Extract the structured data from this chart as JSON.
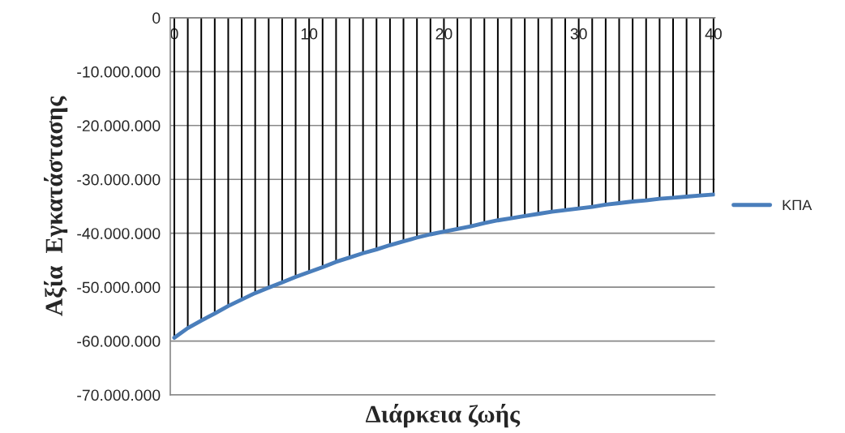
{
  "chart_data": {
    "type": "line",
    "xlabel": "Διάρκεια ζωής",
    "ylabel": "Αξία  Εγκατάστασης",
    "x": [
      0,
      1,
      2,
      3,
      4,
      5,
      6,
      7,
      8,
      9,
      10,
      11,
      12,
      13,
      14,
      15,
      16,
      17,
      18,
      19,
      20,
      21,
      22,
      23,
      24,
      25,
      26,
      27,
      28,
      29,
      30,
      31,
      32,
      33,
      34,
      35,
      36,
      37,
      38,
      39,
      40
    ],
    "series": [
      {
        "type": "bar",
        "color": "#000000",
        "values": [
          -59400000,
          -57600000,
          -56200000,
          -54900000,
          -53500000,
          -52300000,
          -51100000,
          -50100000,
          -49100000,
          -48100000,
          -47200000,
          -46300000,
          -45300000,
          -44500000,
          -43700000,
          -43000000,
          -42200000,
          -41500000,
          -40800000,
          -40200000,
          -39700000,
          -39200000,
          -38700000,
          -38100000,
          -37600000,
          -37200000,
          -36800000,
          -36400000,
          -36000000,
          -35700000,
          -35400000,
          -35100000,
          -34700000,
          -34400000,
          -34100000,
          -33900000,
          -33600000,
          -33400000,
          -33200000,
          -33000000,
          -32800000
        ]
      },
      {
        "name": "ΚΠΑ",
        "color": "#4a7ebb",
        "values": [
          -59400000,
          -57600000,
          -56200000,
          -54900000,
          -53500000,
          -52300000,
          -51100000,
          -50100000,
          -49100000,
          -48100000,
          -47200000,
          -46300000,
          -45300000,
          -44500000,
          -43700000,
          -43000000,
          -42200000,
          -41500000,
          -40800000,
          -40200000,
          -39700000,
          -39200000,
          -38700000,
          -38100000,
          -37600000,
          -37200000,
          -36800000,
          -36400000,
          -36000000,
          -35700000,
          -35400000,
          -35100000,
          -34700000,
          -34400000,
          -34100000,
          -33900000,
          -33600000,
          -33400000,
          -33200000,
          -33000000,
          -32800000
        ]
      }
    ],
    "xlim": [
      -0.3,
      40.1
    ],
    "xticks": [
      0,
      10,
      20,
      30,
      40
    ],
    "ylim": [
      -70000000,
      0
    ],
    "yticks": [
      {
        "value": -70000000,
        "label": "-70.000.000"
      },
      {
        "value": -60000000,
        "label": "-60.000.000"
      },
      {
        "value": -50000000,
        "label": "-50.000.000"
      },
      {
        "value": -40000000,
        "label": "-40.000.000"
      },
      {
        "value": -30000000,
        "label": "-30.000.000"
      },
      {
        "value": -20000000,
        "label": "-20.000.000"
      },
      {
        "value": -10000000,
        "label": "-10.000.000"
      },
      0
    ],
    "grid": "y",
    "legend": "right",
    "marker": "none",
    "line_style": "solid"
  }
}
